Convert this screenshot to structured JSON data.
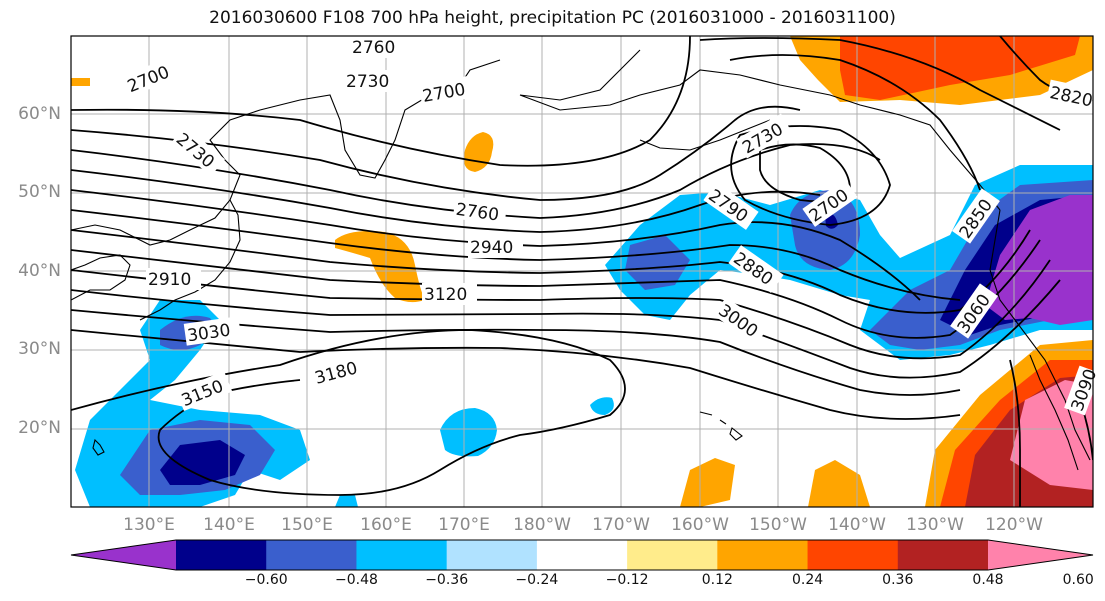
{
  "title": "2016030600 F108 700 hPa height, precipitation PC (2016031000 - 2016031100)",
  "lat_ticks": [
    "60°N",
    "50°N",
    "40°N",
    "30°N",
    "20°N"
  ],
  "lon_ticks": [
    "130°E",
    "140°E",
    "150°E",
    "160°E",
    "170°E",
    "180°W",
    "170°W",
    "160°W",
    "150°W",
    "140°W",
    "130°W",
    "120°W"
  ],
  "colorbar": {
    "colors": [
      "#9932CC",
      "#00008B",
      "#3A5FCD",
      "#00BFFF",
      "#B0E2FF",
      "#FFFFFF",
      "#FFEC8B",
      "#FFA500",
      "#FF4500",
      "#B22222",
      "#FF82AB"
    ],
    "labels": [
      "−0.60",
      "−0.48",
      "−0.36",
      "−0.24",
      "−0.12",
      "0.12",
      "0.24",
      "0.36",
      "0.48",
      "0.60"
    ]
  },
  "contour_labels": [
    "2760",
    "2730",
    "2700",
    "2700",
    "2730",
    "2730",
    "2820",
    "2760",
    "2940",
    "2910",
    "3120",
    "2790",
    "2700",
    "2850",
    "2880",
    "3000",
    "3030",
    "3060",
    "3150",
    "3180",
    "3090"
  ]
}
